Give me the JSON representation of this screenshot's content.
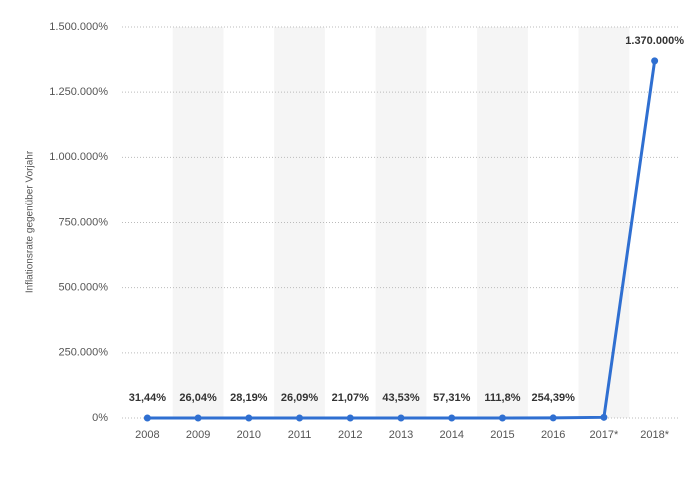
{
  "chart_data": {
    "type": "line",
    "y_label": "Inflationsrate gegenüber Vorjahr",
    "categories": [
      "2008",
      "2009",
      "2010",
      "2011",
      "2012",
      "2013",
      "2014",
      "2015",
      "2016",
      "2017*",
      "2018*"
    ],
    "series": [
      {
        "name": null,
        "color": "#2f6fd1",
        "values": [
          31.44,
          26.04,
          28.19,
          26.09,
          21.07,
          43.53,
          57.31,
          111.8,
          254.39,
          2600,
          1370000
        ],
        "value_labels": [
          "31,44%",
          "26,04%",
          "28,19%",
          "26,09%",
          "21,07%",
          "43,53%",
          "57,31%",
          "111,8%",
          "254,39%",
          null,
          "1.370.000%"
        ]
      }
    ],
    "ylim": [
      0,
      1500000
    ],
    "yticks": [
      {
        "value": 0,
        "label": "0%"
      },
      {
        "value": 250000,
        "label": "250.000%"
      },
      {
        "value": 500000,
        "label": "500.000%"
      },
      {
        "value": 750000,
        "label": "750.000%"
      },
      {
        "value": 1000000,
        "label": "1.000.000%"
      },
      {
        "value": 1250000,
        "label": "1.250.000%"
      },
      {
        "value": 1500000,
        "label": "1.500.000%"
      }
    ],
    "grid": true
  }
}
